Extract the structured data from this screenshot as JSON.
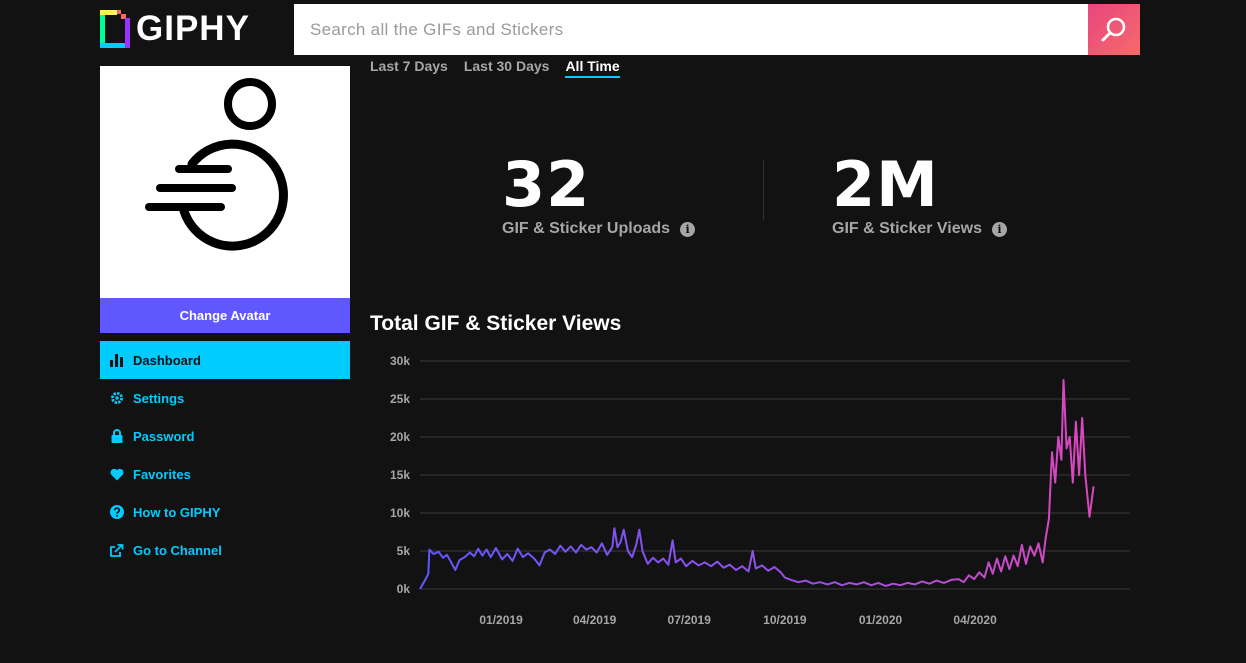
{
  "header": {
    "logo_text": "GIPHY",
    "search_placeholder": "Search all the GIFs and Stickers"
  },
  "sidebar": {
    "change_avatar_label": "Change Avatar",
    "items": [
      {
        "label": "Dashboard",
        "icon": "bar-chart-icon",
        "active": true
      },
      {
        "label": "Settings",
        "icon": "gear-icon",
        "active": false
      },
      {
        "label": "Password",
        "icon": "lock-icon",
        "active": false
      },
      {
        "label": "Favorites",
        "icon": "heart-icon",
        "active": false
      },
      {
        "label": "How to GIPHY",
        "icon": "question-icon",
        "active": false
      },
      {
        "label": "Go to Channel",
        "icon": "external-link-icon",
        "active": false
      }
    ]
  },
  "tabs": [
    {
      "label": "Last 7 Days",
      "active": false
    },
    {
      "label": "Last 30 Days",
      "active": false
    },
    {
      "label": "All Time",
      "active": true
    }
  ],
  "stats": {
    "uploads_value": "32",
    "uploads_label": "GIF & Sticker Uploads",
    "views_value": "2M",
    "views_label": "GIF & Sticker Views"
  },
  "colors": {
    "accent_blue": "#00ccff",
    "accent_purple": "#6157ff",
    "search_pink": "#f0506e",
    "line_start": "#6157ff",
    "line_end": "#e646b6"
  },
  "chart_data": {
    "type": "line",
    "title": "Total GIF & Sticker Views",
    "xlabel": "",
    "ylabel": "",
    "ylim": [
      0,
      30000
    ],
    "y_ticks": [
      "0k",
      "5k",
      "10k",
      "15k",
      "20k",
      "25k",
      "30k"
    ],
    "x_ticks": [
      "01/2019",
      "04/2019",
      "07/2019",
      "10/2019",
      "01/2020",
      "04/2020"
    ],
    "x_start": "2018-10-15",
    "x_end": "2020-08-28",
    "grid": true,
    "series": [
      {
        "points": [
          [
            "2018-10-15",
            0
          ],
          [
            "2018-10-20",
            1200
          ],
          [
            "2018-10-23",
            2000
          ],
          [
            "2018-10-24",
            5200
          ],
          [
            "2018-10-28",
            4600
          ],
          [
            "2018-11-02",
            4900
          ],
          [
            "2018-11-06",
            4100
          ],
          [
            "2018-11-10",
            4500
          ],
          [
            "2018-11-14",
            3500
          ],
          [
            "2018-11-18",
            2500
          ],
          [
            "2018-11-22",
            3800
          ],
          [
            "2018-11-27",
            4200
          ],
          [
            "2018-12-02",
            4800
          ],
          [
            "2018-12-06",
            4300
          ],
          [
            "2018-12-10",
            5300
          ],
          [
            "2018-12-14",
            4400
          ],
          [
            "2018-12-18",
            5200
          ],
          [
            "2018-12-22",
            4200
          ],
          [
            "2018-12-27",
            5400
          ],
          [
            "2019-01-02",
            3900
          ],
          [
            "2019-01-07",
            4600
          ],
          [
            "2019-01-12",
            3700
          ],
          [
            "2019-01-17",
            5300
          ],
          [
            "2019-01-22",
            4200
          ],
          [
            "2019-01-27",
            4700
          ],
          [
            "2019-02-02",
            4000
          ],
          [
            "2019-02-07",
            3100
          ],
          [
            "2019-02-12",
            4800
          ],
          [
            "2019-02-17",
            5200
          ],
          [
            "2019-02-22",
            4600
          ],
          [
            "2019-02-27",
            5700
          ],
          [
            "2019-03-04",
            4900
          ],
          [
            "2019-03-09",
            5600
          ],
          [
            "2019-03-14",
            4800
          ],
          [
            "2019-03-19",
            5800
          ],
          [
            "2019-03-24",
            5200
          ],
          [
            "2019-03-29",
            5500
          ],
          [
            "2019-04-03",
            4800
          ],
          [
            "2019-04-08",
            6000
          ],
          [
            "2019-04-13",
            4500
          ],
          [
            "2019-04-18",
            5500
          ],
          [
            "2019-04-20",
            8000
          ],
          [
            "2019-04-23",
            5500
          ],
          [
            "2019-04-26",
            6200
          ],
          [
            "2019-04-29",
            7800
          ],
          [
            "2019-05-03",
            5000
          ],
          [
            "2019-05-07",
            4200
          ],
          [
            "2019-05-11",
            5800
          ],
          [
            "2019-05-14",
            7800
          ],
          [
            "2019-05-17",
            5000
          ],
          [
            "2019-05-22",
            3300
          ],
          [
            "2019-05-27",
            4100
          ],
          [
            "2019-06-01",
            3500
          ],
          [
            "2019-06-06",
            4000
          ],
          [
            "2019-06-11",
            3200
          ],
          [
            "2019-06-15",
            6400
          ],
          [
            "2019-06-18",
            3500
          ],
          [
            "2019-06-23",
            4000
          ],
          [
            "2019-06-28",
            3000
          ],
          [
            "2019-07-04",
            3700
          ],
          [
            "2019-07-10",
            3100
          ],
          [
            "2019-07-16",
            3500
          ],
          [
            "2019-07-22",
            3000
          ],
          [
            "2019-07-28",
            3600
          ],
          [
            "2019-08-03",
            2800
          ],
          [
            "2019-08-09",
            3200
          ],
          [
            "2019-08-15",
            2500
          ],
          [
            "2019-08-21",
            3000
          ],
          [
            "2019-08-27",
            2300
          ],
          [
            "2019-08-31",
            5000
          ],
          [
            "2019-09-03",
            2700
          ],
          [
            "2019-09-09",
            3100
          ],
          [
            "2019-09-15",
            2400
          ],
          [
            "2019-09-21",
            2900
          ],
          [
            "2019-09-27",
            2200
          ],
          [
            "2019-10-01",
            1500
          ],
          [
            "2019-10-07",
            1200
          ],
          [
            "2019-10-14",
            900
          ],
          [
            "2019-10-21",
            1100
          ],
          [
            "2019-10-28",
            700
          ],
          [
            "2019-11-04",
            900
          ],
          [
            "2019-11-11",
            600
          ],
          [
            "2019-11-18",
            900
          ],
          [
            "2019-11-25",
            500
          ],
          [
            "2019-12-02",
            800
          ],
          [
            "2019-12-09",
            600
          ],
          [
            "2019-12-16",
            900
          ],
          [
            "2019-12-23",
            500
          ],
          [
            "2019-12-30",
            800
          ],
          [
            "2020-01-06",
            400
          ],
          [
            "2020-01-13",
            700
          ],
          [
            "2020-01-20",
            500
          ],
          [
            "2020-01-27",
            800
          ],
          [
            "2020-02-03",
            600
          ],
          [
            "2020-02-10",
            1000
          ],
          [
            "2020-02-17",
            700
          ],
          [
            "2020-02-24",
            1100
          ],
          [
            "2020-03-02",
            800
          ],
          [
            "2020-03-09",
            1200
          ],
          [
            "2020-03-16",
            1300
          ],
          [
            "2020-03-21",
            900
          ],
          [
            "2020-03-26",
            1800
          ],
          [
            "2020-03-31",
            1300
          ],
          [
            "2020-04-05",
            2200
          ],
          [
            "2020-04-10",
            1500
          ],
          [
            "2020-04-14",
            3500
          ],
          [
            "2020-04-18",
            2000
          ],
          [
            "2020-04-22",
            4000
          ],
          [
            "2020-04-26",
            2300
          ],
          [
            "2020-04-30",
            4300
          ],
          [
            "2020-05-04",
            2600
          ],
          [
            "2020-05-08",
            4400
          ],
          [
            "2020-05-12",
            3000
          ],
          [
            "2020-05-16",
            5800
          ],
          [
            "2020-05-20",
            3300
          ],
          [
            "2020-05-24",
            5600
          ],
          [
            "2020-05-28",
            4400
          ],
          [
            "2020-06-01",
            6000
          ],
          [
            "2020-06-05",
            3500
          ],
          [
            "2020-06-08",
            6800
          ],
          [
            "2020-06-11",
            9200
          ],
          [
            "2020-06-14",
            18000
          ],
          [
            "2020-06-17",
            14000
          ],
          [
            "2020-06-20",
            20000
          ],
          [
            "2020-06-23",
            17000
          ],
          [
            "2020-06-25",
            27500
          ],
          [
            "2020-06-28",
            18500
          ],
          [
            "2020-07-01",
            20000
          ],
          [
            "2020-07-04",
            14000
          ],
          [
            "2020-07-07",
            22000
          ],
          [
            "2020-07-10",
            15000
          ],
          [
            "2020-07-13",
            22500
          ],
          [
            "2020-07-16",
            15000
          ],
          [
            "2020-07-20",
            9500
          ],
          [
            "2020-07-24",
            13500
          ]
        ]
      }
    ]
  }
}
